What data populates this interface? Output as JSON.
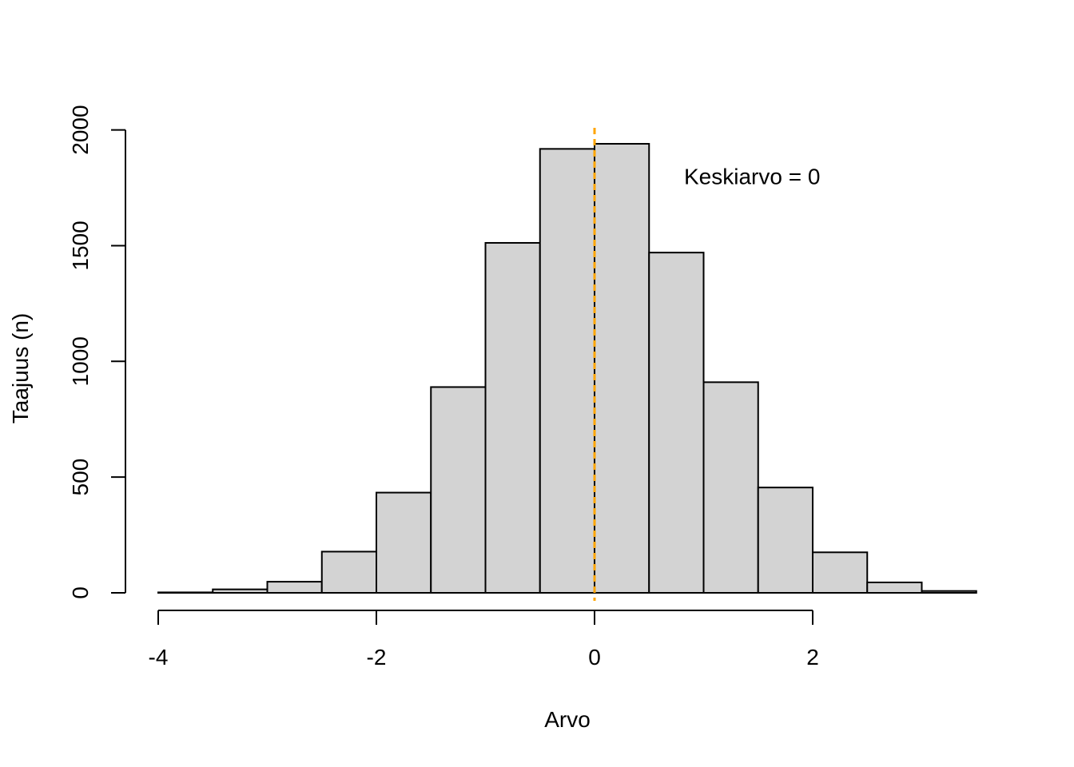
{
  "chart_data": {
    "type": "bar",
    "title": "",
    "xlabel": "Arvo",
    "ylabel": "Taajuus (n)",
    "xlim": [
      -4,
      3.5
    ],
    "ylim": [
      0,
      2000
    ],
    "bin_width": 0.5,
    "bins": [
      {
        "x0": -4.0,
        "x1": -3.5,
        "count": 2
      },
      {
        "x0": -3.5,
        "x1": -3.0,
        "count": 15
      },
      {
        "x0": -3.0,
        "x1": -2.5,
        "count": 48
      },
      {
        "x0": -2.5,
        "x1": -2.0,
        "count": 178
      },
      {
        "x0": -2.0,
        "x1": -1.5,
        "count": 433
      },
      {
        "x0": -1.5,
        "x1": -1.0,
        "count": 889
      },
      {
        "x0": -1.0,
        "x1": -0.5,
        "count": 1512
      },
      {
        "x0": -0.5,
        "x1": 0.0,
        "count": 1918
      },
      {
        "x0": 0.0,
        "x1": 0.5,
        "count": 1940
      },
      {
        "x0": 0.5,
        "x1": 1.0,
        "count": 1470
      },
      {
        "x0": 1.0,
        "x1": 1.5,
        "count": 910
      },
      {
        "x0": 1.5,
        "x1": 2.0,
        "count": 455
      },
      {
        "x0": 2.0,
        "x1": 2.5,
        "count": 175
      },
      {
        "x0": 2.5,
        "x1": 3.0,
        "count": 45
      },
      {
        "x0": 3.0,
        "x1": 3.5,
        "count": 8
      }
    ],
    "x_ticks": [
      -4,
      -2,
      0,
      2
    ],
    "x_tick_labels": [
      "-4",
      "-2",
      "0",
      "2"
    ],
    "y_ticks": [
      0,
      500,
      1000,
      1500,
      2000
    ],
    "y_tick_labels": [
      "0",
      "500",
      "1000",
      "1500",
      "2000"
    ],
    "mean_line": {
      "x": 0,
      "color": "#FFA500",
      "style": "dashed"
    },
    "annotation": {
      "text": "Keskiarvo = 0",
      "x": 0.8,
      "y": 1800
    },
    "bar_fill": "#D3D3D3",
    "bar_stroke": "#000000",
    "grid": false
  }
}
